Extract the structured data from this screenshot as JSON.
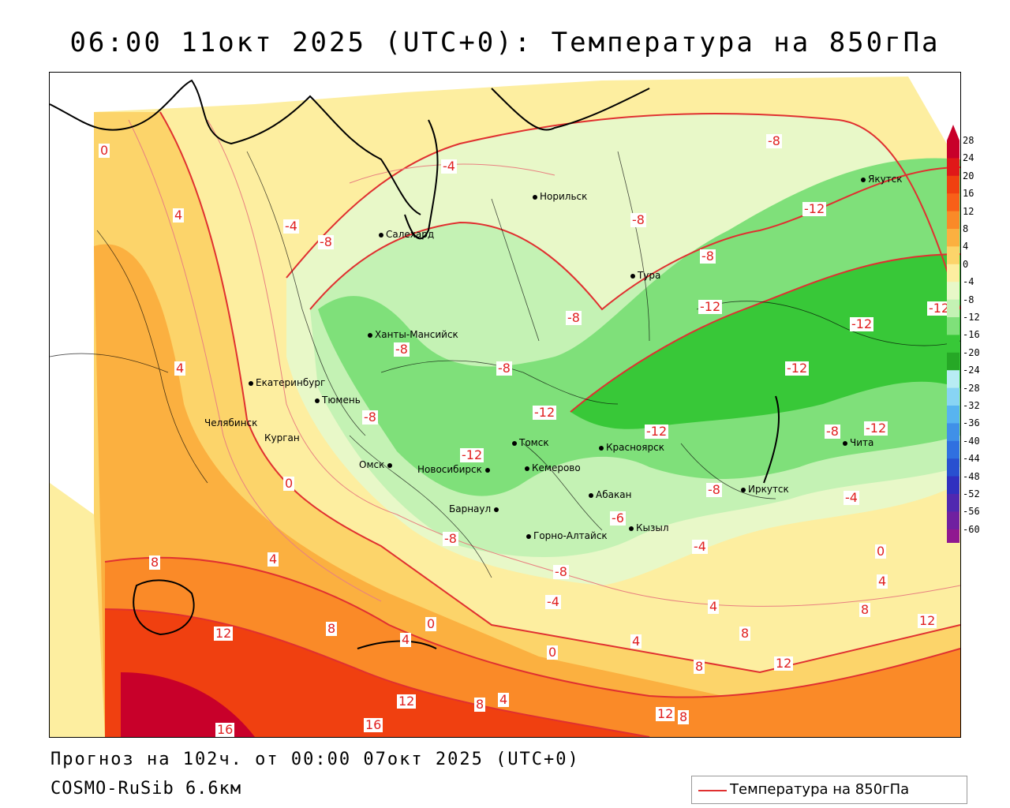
{
  "title": "06:00 11окт 2025 (UTC+0): Температура на 850гПа",
  "forecast_line": "Прогноз на 102ч. от 00:00 07окт 2025 (UTC+0)",
  "model_line": "COSMO-RuSib 6.6км",
  "legend": {
    "label": "Температура на 850гПа",
    "line_color": "#e03030"
  },
  "cities": [
    "Норильск",
    "Якутск",
    "Салехард",
    "Тура",
    "Ханты-Мансийск",
    "Екатеринбург",
    "Тюмень",
    "Челябинск",
    "Курган",
    "Томск",
    "Красноярск",
    "Чита",
    "Омск",
    "Новосибирск",
    "Кемерово",
    "Иркутск",
    "Абакан",
    "Барнаул",
    "Кызыл",
    "Горно-Алтайск"
  ],
  "isotherm_labels": [
    "0",
    "4",
    "-4",
    "-8",
    "4",
    "-4",
    "-8",
    "-12",
    "-8",
    "-8",
    "-8",
    "-12",
    "-12",
    "-12",
    "-12",
    "-8",
    "-12",
    "-8",
    "-12",
    "-12",
    "-8",
    "-12",
    "-8",
    "-8",
    "-4",
    "-6",
    "-8",
    "-4",
    "-8",
    "-4",
    "0",
    "8",
    "4",
    "12",
    "8",
    "0",
    "4",
    "4",
    "0",
    "4",
    "8",
    "12",
    "8",
    "12",
    "4",
    "0",
    "8",
    "16",
    "12",
    "8",
    "4",
    "12",
    "8",
    "16"
  ],
  "scale": {
    "levels": [
      "28",
      "24",
      "20",
      "16",
      "12",
      "8",
      "4",
      "0",
      "-4",
      "-8",
      "-12",
      "-16",
      "-20",
      "-24",
      "-28",
      "-32",
      "-36",
      "-40",
      "-44",
      "-48",
      "-52",
      "-56",
      "-60"
    ],
    "colors": [
      "#c8002a",
      "#e01818",
      "#f04010",
      "#f86018",
      "#fa8a28",
      "#fbb040",
      "#fcd46a",
      "#fdeea0",
      "#e8f8c8",
      "#c4f2b4",
      "#7fe07a",
      "#38c838",
      "#26a826",
      "#b8ecf4",
      "#88d4f4",
      "#58b4f0",
      "#4090e8",
      "#3070e0",
      "#2850d0",
      "#3030c0",
      "#5028b0",
      "#7020a0",
      "#901890"
    ]
  }
}
